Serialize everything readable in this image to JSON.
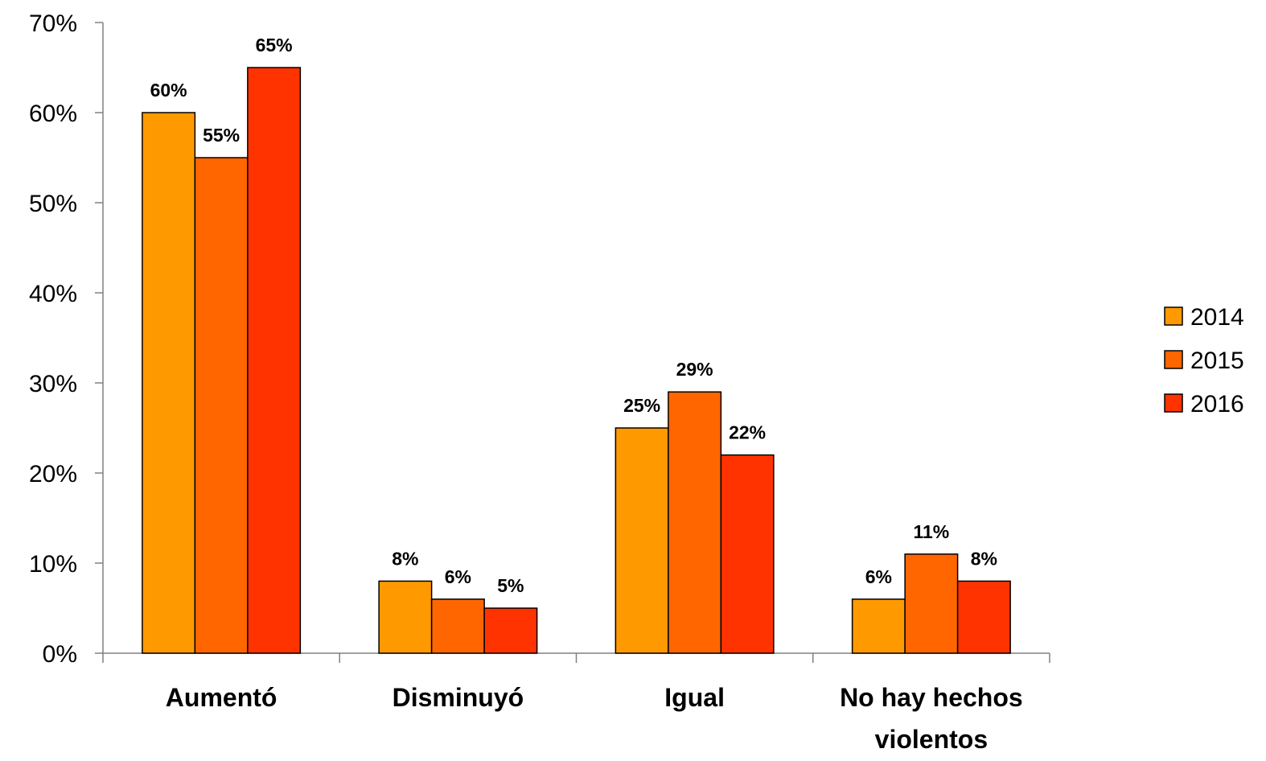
{
  "chart_data": {
    "type": "bar",
    "title": "",
    "xlabel": "",
    "ylabel": "",
    "ylim": [
      0,
      70
    ],
    "y_tick_step": 10,
    "y_tick_format": "percent",
    "grid": false,
    "legend_position": "right",
    "categories": [
      [
        "Aumentó"
      ],
      [
        "Disminuyó"
      ],
      [
        "Igual"
      ],
      [
        "No hay hechos",
        "violentos"
      ]
    ],
    "series": [
      {
        "name": "2014",
        "color": "#FF9900",
        "values": [
          60,
          8,
          25,
          6
        ],
        "labels": [
          "60%",
          "8%",
          "25%",
          "6%"
        ]
      },
      {
        "name": "2015",
        "color": "#FF6600",
        "values": [
          55,
          6,
          29,
          11
        ],
        "labels": [
          "55%",
          "6%",
          "29%",
          "11%"
        ]
      },
      {
        "name": "2016",
        "color": "#FF3300",
        "values": [
          65,
          5,
          22,
          8
        ],
        "labels": [
          "65%",
          "5%",
          "22%",
          "8%"
        ]
      }
    ]
  }
}
